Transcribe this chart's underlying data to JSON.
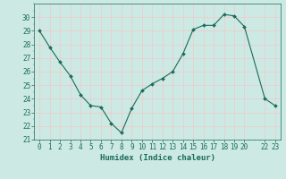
{
  "x": [
    0,
    1,
    2,
    3,
    4,
    5,
    6,
    7,
    8,
    9,
    10,
    11,
    12,
    13,
    14,
    15,
    16,
    17,
    18,
    19,
    20,
    22,
    23
  ],
  "y": [
    29,
    27.8,
    26.7,
    25.7,
    24.3,
    23.5,
    23.4,
    22.2,
    21.5,
    23.3,
    24.6,
    25.1,
    25.5,
    26.0,
    27.3,
    29.1,
    29.4,
    29.4,
    30.2,
    30.1,
    29.3,
    24.0,
    23.5
  ],
  "line_color": "#1a6b5a",
  "marker": "D",
  "marker_size": 2.0,
  "bg_color": "#cce9e4",
  "grid_major_color": "#f0c8c8",
  "grid_minor_color": "#cce9e4",
  "xlabel": "Humidex (Indice chaleur)",
  "xlim": [
    -0.5,
    23.5
  ],
  "ylim": [
    21,
    31
  ],
  "yticks": [
    21,
    22,
    23,
    24,
    25,
    26,
    27,
    28,
    29,
    30
  ],
  "xticks": [
    0,
    1,
    2,
    3,
    4,
    5,
    6,
    7,
    8,
    9,
    10,
    11,
    12,
    13,
    14,
    15,
    16,
    17,
    18,
    19,
    20,
    22,
    23
  ],
  "xtick_labels": [
    "0",
    "1",
    "2",
    "3",
    "4",
    "5",
    "6",
    "7",
    "8",
    "9",
    "10",
    "11",
    "12",
    "13",
    "14",
    "15",
    "16",
    "17",
    "18",
    "19",
    "20",
    "22",
    "23"
  ],
  "tick_color": "#1a6b5a",
  "label_fontsize": 6.5,
  "tick_fontsize": 5.5
}
